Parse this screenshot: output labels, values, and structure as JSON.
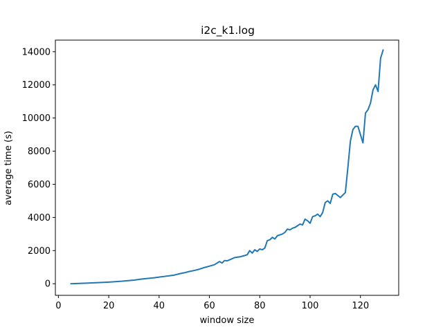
{
  "chart_data": {
    "type": "line",
    "title": "i2c_k1.log",
    "xlabel": "window size",
    "ylabel": "average time (s)",
    "xlim": [
      -1.2,
      135.2
    ],
    "ylim": [
      -700,
      14700
    ],
    "xticks": [
      0,
      20,
      40,
      60,
      80,
      100,
      120
    ],
    "yticks": [
      0,
      2000,
      4000,
      6000,
      8000,
      10000,
      12000,
      14000
    ],
    "grid": false,
    "series": [
      {
        "color": "#1f77b4",
        "x": [
          5,
          10,
          15,
          20,
          25,
          30,
          33,
          36,
          38,
          40,
          42,
          44,
          46,
          48,
          50,
          52,
          54,
          56,
          58,
          60,
          62,
          64,
          65,
          66,
          67,
          68,
          70,
          71,
          72,
          74,
          75,
          76,
          77,
          78,
          79,
          80,
          81,
          82,
          83,
          84,
          85,
          86,
          87,
          88,
          89,
          90,
          91,
          92,
          93,
          94,
          95,
          96,
          97,
          98,
          99,
          100,
          101,
          102,
          103,
          104,
          105,
          106,
          107,
          108,
          109,
          110,
          112,
          114,
          115,
          116,
          117,
          118,
          119,
          120,
          121,
          122,
          123,
          124,
          125,
          126,
          127,
          128,
          129
        ],
        "y": [
          0,
          30,
          60,
          100,
          150,
          220,
          280,
          330,
          360,
          400,
          440,
          480,
          520,
          600,
          660,
          740,
          800,
          880,
          980,
          1060,
          1150,
          1340,
          1250,
          1400,
          1380,
          1440,
          1580,
          1600,
          1620,
          1700,
          1750,
          2000,
          1850,
          2050,
          1950,
          2100,
          2050,
          2150,
          2600,
          2650,
          2800,
          2700,
          2900,
          2950,
          3000,
          3100,
          3300,
          3250,
          3350,
          3400,
          3500,
          3600,
          3550,
          3900,
          3800,
          3650,
          4050,
          4100,
          4200,
          4050,
          4300,
          4900,
          5000,
          4850,
          5400,
          5450,
          5200,
          5500,
          7000,
          8600,
          9300,
          9500,
          9500,
          9000,
          8500,
          10300,
          10500,
          10900,
          11700,
          12000,
          11600,
          13600,
          14100
        ]
      }
    ]
  }
}
